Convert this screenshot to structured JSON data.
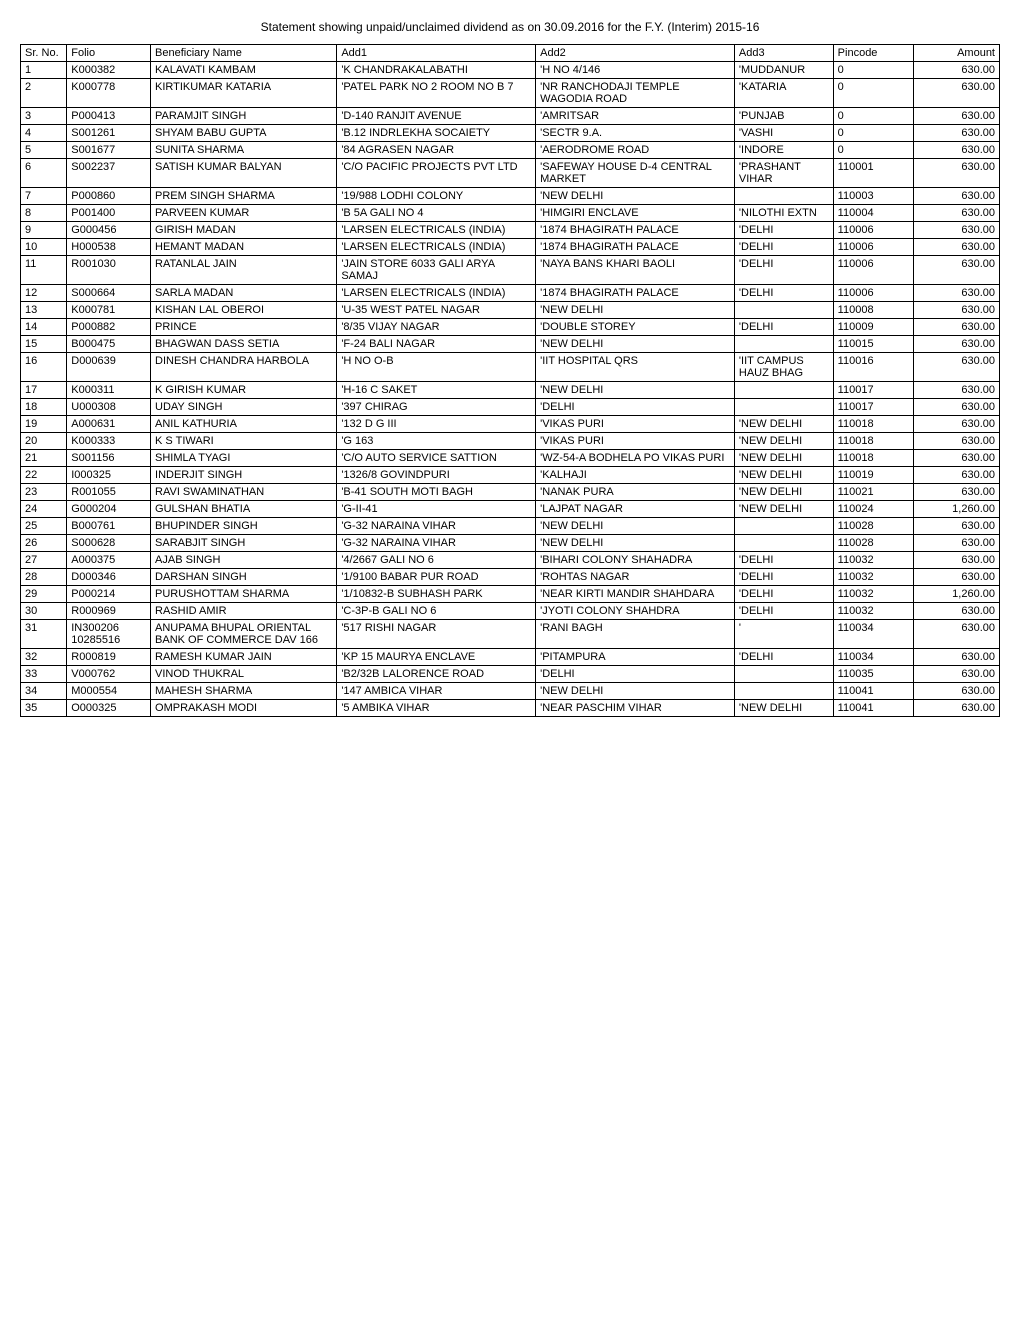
{
  "title": "Statement showing unpaid/unclaimed dividend as on 30.09.2016 for the  F.Y. (Interim) 2015-16",
  "headers": {
    "sr": "Sr. No.",
    "folio": "Folio",
    "name": "Beneficiary Name",
    "add1": "Add1",
    "add2": "Add2",
    "add3": "Add3",
    "pin": "Pincode",
    "amt": "Amount"
  },
  "rows": [
    {
      "sr": "1",
      "folio": "K000382",
      "name": "KALAVATI KAMBAM",
      "add1": "'K CHANDRAKALABATHI",
      "add2": "'H NO 4/146",
      "add3": "'MUDDANUR",
      "pin": "0",
      "amt": "630.00"
    },
    {
      "sr": "2",
      "folio": "K000778",
      "name": "KIRTIKUMAR KATARIA",
      "add1": "'PATEL PARK NO 2 ROOM NO B 7",
      "add2": "'NR RANCHODAJI TEMPLE WAGODIA ROAD",
      "add3": "'KATARIA",
      "pin": "0",
      "amt": "630.00"
    },
    {
      "sr": "3",
      "folio": "P000413",
      "name": "PARAMJIT SINGH",
      "add1": "'D-140 RANJIT AVENUE",
      "add2": "'AMRITSAR",
      "add3": "'PUNJAB",
      "pin": "0",
      "amt": "630.00"
    },
    {
      "sr": "4",
      "folio": "S001261",
      "name": "SHYAM BABU GUPTA",
      "add1": "'B.12 INDRLEKHA SOCAIETY",
      "add2": "'SECTR 9.A.",
      "add3": "'VASHI",
      "pin": "0",
      "amt": "630.00"
    },
    {
      "sr": "5",
      "folio": "S001677",
      "name": "SUNITA SHARMA",
      "add1": "'84 AGRASEN NAGAR",
      "add2": "'AERODROME ROAD",
      "add3": "'INDORE",
      "pin": "0",
      "amt": "630.00"
    },
    {
      "sr": "6",
      "folio": "S002237",
      "name": "SATISH KUMAR BALYAN",
      "add1": "'C/O PACIFIC PROJECTS PVT LTD",
      "add2": "'SAFEWAY HOUSE D-4 CENTRAL MARKET",
      "add3": "'PRASHANT VIHAR",
      "pin": "110001",
      "amt": "630.00"
    },
    {
      "sr": "7",
      "folio": "P000860",
      "name": "PREM SINGH SHARMA",
      "add1": "'19/988 LODHI COLONY",
      "add2": "'NEW DELHI",
      "add3": "",
      "pin": "110003",
      "amt": "630.00"
    },
    {
      "sr": "8",
      "folio": "P001400",
      "name": "PARVEEN KUMAR",
      "add1": "'B 5A GALI NO 4",
      "add2": "'HIMGIRI ENCLAVE",
      "add3": "'NILOTHI EXTN",
      "pin": "110004",
      "amt": "630.00"
    },
    {
      "sr": "9",
      "folio": "G000456",
      "name": "GIRISH MADAN",
      "add1": "'LARSEN ELECTRICALS (INDIA)",
      "add2": "'1874 BHAGIRATH PALACE",
      "add3": "'DELHI",
      "pin": "110006",
      "amt": "630.00"
    },
    {
      "sr": "10",
      "folio": "H000538",
      "name": "HEMANT MADAN",
      "add1": "'LARSEN ELECTRICALS (INDIA)",
      "add2": "'1874 BHAGIRATH PALACE",
      "add3": "'DELHI",
      "pin": "110006",
      "amt": "630.00"
    },
    {
      "sr": "11",
      "folio": "R001030",
      "name": "RATANLAL JAIN",
      "add1": "'JAIN STORE 6033 GALI ARYA SAMAJ",
      "add2": "'NAYA BANS KHARI BAOLI",
      "add3": "'DELHI",
      "pin": "110006",
      "amt": "630.00"
    },
    {
      "sr": "12",
      "folio": "S000664",
      "name": "SARLA MADAN",
      "add1": "'LARSEN ELECTRICALS (INDIA)",
      "add2": "'1874 BHAGIRATH PALACE",
      "add3": "'DELHI",
      "pin": "110006",
      "amt": "630.00"
    },
    {
      "sr": "13",
      "folio": "K000781",
      "name": "KISHAN LAL OBEROI",
      "add1": "'U-35 WEST PATEL NAGAR",
      "add2": "'NEW DELHI",
      "add3": "",
      "pin": "110008",
      "amt": "630.00"
    },
    {
      "sr": "14",
      "folio": "P000882",
      "name": "PRINCE",
      "add1": "'8/35 VIJAY NAGAR",
      "add2": "'DOUBLE STOREY",
      "add3": "'DELHI",
      "pin": "110009",
      "amt": "630.00"
    },
    {
      "sr": "15",
      "folio": "B000475",
      "name": "BHAGWAN DASS SETIA",
      "add1": "'F-24 BALI NAGAR",
      "add2": "'NEW DELHI",
      "add3": "",
      "pin": "110015",
      "amt": "630.00"
    },
    {
      "sr": "16",
      "folio": "D000639",
      "name": "DINESH CHANDRA HARBOLA",
      "add1": "'H NO O-B",
      "add2": "'IIT HOSPITAL QRS",
      "add3": "'IIT CAMPUS HAUZ BHAG",
      "pin": "110016",
      "amt": "630.00"
    },
    {
      "sr": "17",
      "folio": "K000311",
      "name": "K GIRISH KUMAR",
      "add1": "'H-16 C SAKET",
      "add2": "'NEW DELHI",
      "add3": "",
      "pin": "110017",
      "amt": "630.00"
    },
    {
      "sr": "18",
      "folio": "U000308",
      "name": "UDAY SINGH",
      "add1": "'397 CHIRAG",
      "add2": "'DELHI",
      "add3": "",
      "pin": "110017",
      "amt": "630.00"
    },
    {
      "sr": "19",
      "folio": "A000631",
      "name": "ANIL KATHURIA",
      "add1": "'132 D G III",
      "add2": "'VIKAS PURI",
      "add3": "'NEW DELHI",
      "pin": "110018",
      "amt": "630.00"
    },
    {
      "sr": "20",
      "folio": "K000333",
      "name": "K S TIWARI",
      "add1": "'G 163",
      "add2": "'VIKAS PURI",
      "add3": "'NEW DELHI",
      "pin": "110018",
      "amt": "630.00"
    },
    {
      "sr": "21",
      "folio": "S001156",
      "name": "SHIMLA TYAGI",
      "add1": "'C/O AUTO SERVICE SATTION",
      "add2": "'WZ-54-A BODHELA PO VIKAS PURI",
      "add3": "'NEW DELHI",
      "pin": "110018",
      "amt": "630.00"
    },
    {
      "sr": "22",
      "folio": "I000325",
      "name": "INDERJIT SINGH",
      "add1": "'1326/8 GOVINDPURI",
      "add2": "'KALHAJI",
      "add3": "'NEW DELHI",
      "pin": "110019",
      "amt": "630.00"
    },
    {
      "sr": "23",
      "folio": "R001055",
      "name": "RAVI SWAMINATHAN",
      "add1": "'B-41 SOUTH MOTI BAGH",
      "add2": "'NANAK PURA",
      "add3": "'NEW DELHI",
      "pin": "110021",
      "amt": "630.00"
    },
    {
      "sr": "24",
      "folio": "G000204",
      "name": "GULSHAN BHATIA",
      "add1": "'G-II-41",
      "add2": "'LAJPAT NAGAR",
      "add3": "'NEW DELHI",
      "pin": "110024",
      "amt": "1,260.00"
    },
    {
      "sr": "25",
      "folio": "B000761",
      "name": "BHUPINDER SINGH",
      "add1": "'G-32 NARAINA VIHAR",
      "add2": "'NEW DELHI",
      "add3": "",
      "pin": "110028",
      "amt": "630.00"
    },
    {
      "sr": "26",
      "folio": "S000628",
      "name": "SARABJIT SINGH",
      "add1": "'G-32 NARAINA VIHAR",
      "add2": "'NEW DELHI",
      "add3": "",
      "pin": "110028",
      "amt": "630.00"
    },
    {
      "sr": "27",
      "folio": "A000375",
      "name": "AJAB SINGH",
      "add1": "'4/2667 GALI NO 6",
      "add2": "'BIHARI COLONY SHAHADRA",
      "add3": "'DELHI",
      "pin": "110032",
      "amt": "630.00"
    },
    {
      "sr": "28",
      "folio": "D000346",
      "name": "DARSHAN SINGH",
      "add1": "'1/9100 BABAR PUR ROAD",
      "add2": "'ROHTAS NAGAR",
      "add3": "'DELHI",
      "pin": "110032",
      "amt": "630.00"
    },
    {
      "sr": "29",
      "folio": "P000214",
      "name": "PURUSHOTTAM SHARMA",
      "add1": "'1/10832-B SUBHASH PARK",
      "add2": "'NEAR KIRTI MANDIR SHAHDARA",
      "add3": "'DELHI",
      "pin": "110032",
      "amt": "1,260.00"
    },
    {
      "sr": "30",
      "folio": "R000969",
      "name": "RASHID AMIR",
      "add1": "'C-3P-B GALI NO 6",
      "add2": "'JYOTI COLONY SHAHDRA",
      "add3": "'DELHI",
      "pin": "110032",
      "amt": "630.00"
    },
    {
      "sr": "31",
      "folio": "IN300206 10285516",
      "name": "ANUPAMA BHUPAL ORIENTAL BANK OF COMMERCE DAV 166",
      "add1": "'517 RISHI NAGAR",
      "add2": "'RANI BAGH",
      "add3": "'",
      "pin": "110034",
      "amt": "630.00"
    },
    {
      "sr": "32",
      "folio": "R000819",
      "name": "RAMESH KUMAR JAIN",
      "add1": "'KP 15 MAURYA ENCLAVE",
      "add2": "'PITAMPURA",
      "add3": "'DELHI",
      "pin": "110034",
      "amt": "630.00"
    },
    {
      "sr": "33",
      "folio": "V000762",
      "name": "VINOD THUKRAL",
      "add1": "'B2/32B LALORENCE ROAD",
      "add2": "'DELHI",
      "add3": "",
      "pin": "110035",
      "amt": "630.00"
    },
    {
      "sr": "34",
      "folio": "M000554",
      "name": "MAHESH SHARMA",
      "add1": "'147 AMBICA VIHAR",
      "add2": "'NEW DELHI",
      "add3": "",
      "pin": "110041",
      "amt": "630.00"
    },
    {
      "sr": "35",
      "folio": "O000325",
      "name": "OMPRAKASH MODI",
      "add1": "'5 AMBIKA VIHAR",
      "add2": "'NEAR PASCHIM VIHAR",
      "add3": "'NEW DELHI",
      "pin": "110041",
      "amt": "630.00"
    }
  ]
}
